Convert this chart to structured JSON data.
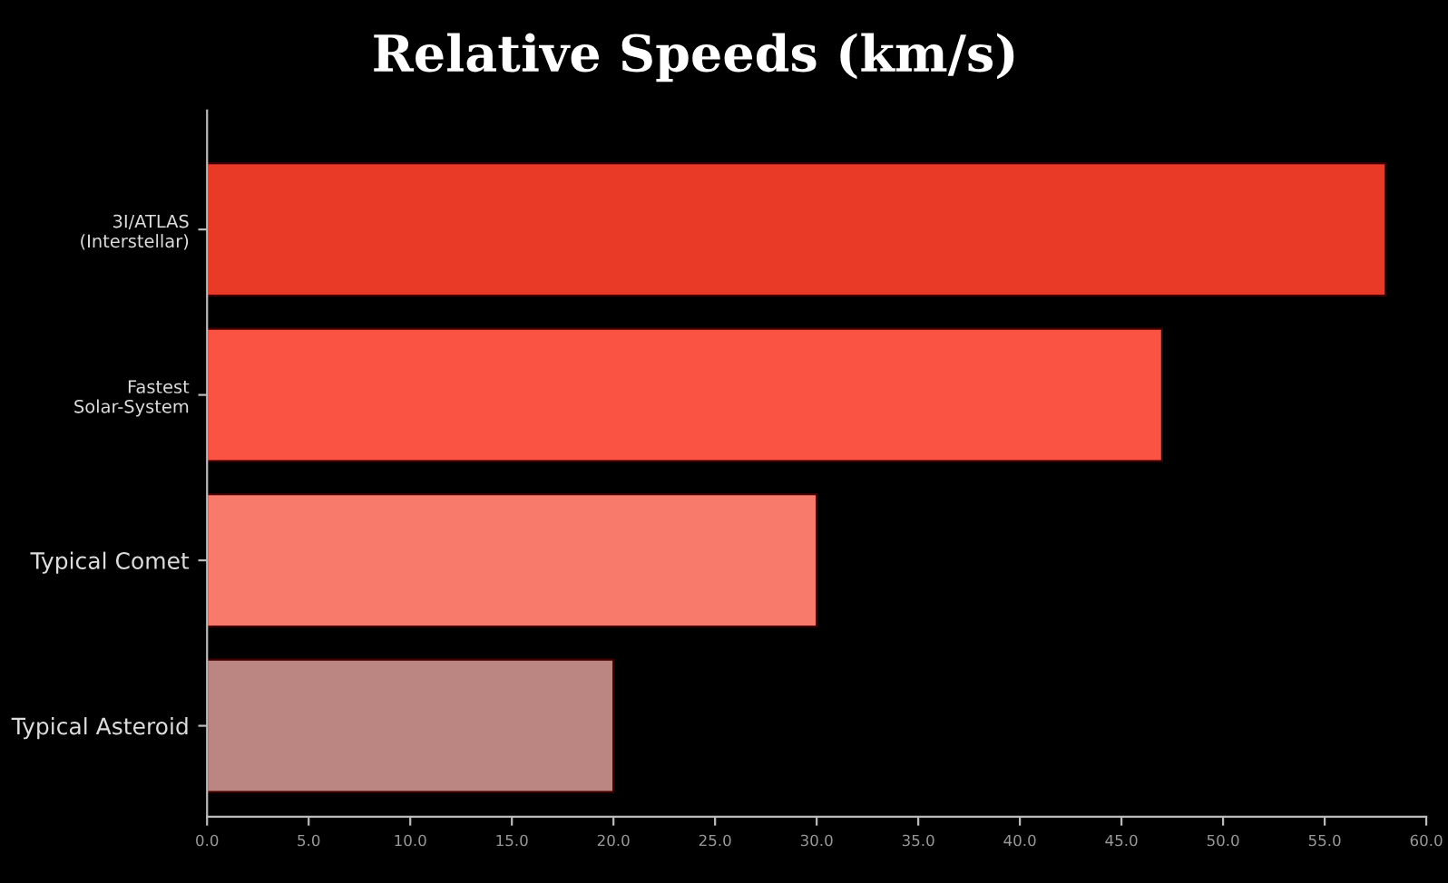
{
  "chart_data": {
    "type": "bar",
    "orientation": "horizontal",
    "title": "Relative Speeds (km/s)",
    "categories": [
      "3I/ATLAS\n(Interstellar)",
      "Fastest\nSolar-System",
      "Typical Comet",
      "Typical Asteroid"
    ],
    "values": [
      58,
      47,
      30,
      20
    ],
    "colors": [
      "#e83a26",
      "#fb5343",
      "#f87a6a",
      "#bb8581"
    ],
    "xlim": [
      0,
      60
    ],
    "xticks": [
      {
        "value": 0,
        "label": "0.0"
      },
      {
        "value": 5,
        "label": "5.0"
      },
      {
        "value": 10,
        "label": "10.0"
      },
      {
        "value": 15,
        "label": "15.0"
      },
      {
        "value": 20,
        "label": "20.0"
      },
      {
        "value": 25,
        "label": "25.0"
      },
      {
        "value": 30,
        "label": "30.0"
      },
      {
        "value": 35,
        "label": "35.0"
      },
      {
        "value": 40,
        "label": "40.0"
      },
      {
        "value": 45,
        "label": "45.0"
      },
      {
        "value": 50,
        "label": "50.0"
      },
      {
        "value": 55,
        "label": "55.0"
      },
      {
        "value": 60,
        "label": "60.0"
      }
    ],
    "grid": false
  }
}
